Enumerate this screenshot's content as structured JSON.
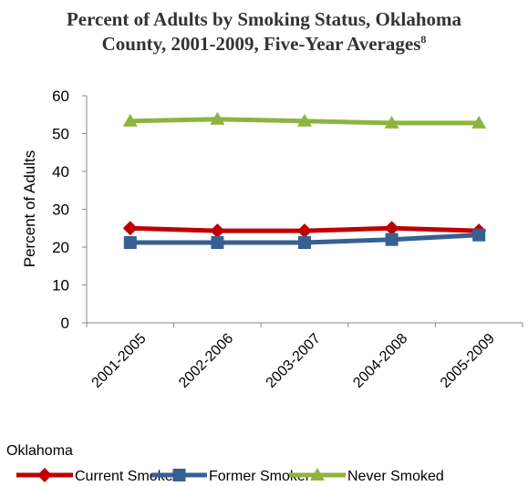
{
  "chart_data": {
    "type": "line",
    "title": "Percent of Adults by Smoking Status, Oklahoma County, 2001-2009, Five-Year Averages",
    "title_line1": "Percent of Adults by Smoking Status, Oklahoma",
    "title_line2": "County, 2001-2009, Five-Year Averages",
    "title_footnote": "8",
    "ylabel": "Percent of Adults",
    "xlabel": "",
    "ylim": [
      0,
      60
    ],
    "yticks": [
      0,
      10,
      20,
      30,
      40,
      50,
      60
    ],
    "categories": [
      "2001-2005",
      "2002-2006",
      "2003-2007",
      "2004-2008",
      "2005-2009"
    ],
    "series": [
      {
        "name": "Current Smoker",
        "color": "#C00000",
        "marker": "diamond",
        "values": [
          25.0,
          24.3,
          24.3,
          25.0,
          24.3
        ]
      },
      {
        "name": "Former Smoker",
        "color": "#366092",
        "marker": "square",
        "values": [
          21.2,
          21.2,
          21.2,
          22.0,
          23.2
        ]
      },
      {
        "name": "Never Smoked",
        "color": "#8DB43E",
        "marker": "triangle",
        "values": [
          53.3,
          53.8,
          53.3,
          52.8,
          52.8
        ]
      }
    ],
    "legend_title": "Oklahoma",
    "legend_position": "bottom",
    "grid": false
  }
}
